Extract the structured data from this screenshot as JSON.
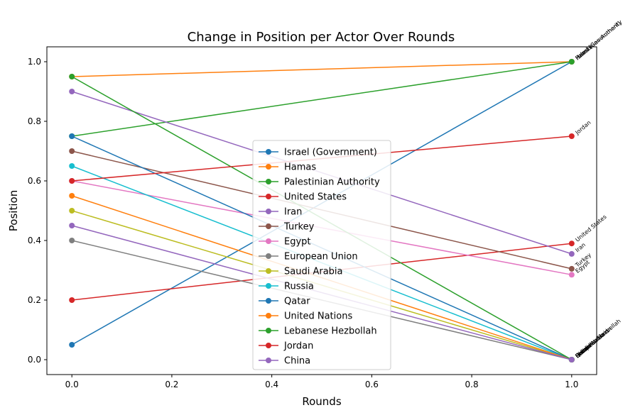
{
  "chart_data": {
    "type": "line",
    "title": "Change in Position per Actor Over Rounds",
    "xlabel": "Rounds",
    "ylabel": "Position",
    "xlim": [
      -0.05,
      1.05
    ],
    "ylim": [
      -0.05,
      1.05
    ],
    "x": [
      0.0,
      1.0
    ],
    "xticks": [
      0.0,
      0.2,
      0.4,
      0.6,
      0.8,
      1.0
    ],
    "yticks": [
      0.0,
      0.2,
      0.4,
      0.6,
      0.8,
      1.0
    ],
    "xtick_labels": [
      "0.0",
      "0.2",
      "0.4",
      "0.6",
      "0.8",
      "1.0"
    ],
    "ytick_labels": [
      "0.0",
      "0.2",
      "0.4",
      "0.6",
      "0.8",
      "1.0"
    ],
    "grid": false,
    "legend_position": "center-bottom",
    "series": [
      {
        "name": "Israel (Government)",
        "color": "#1f77b4",
        "values": [
          0.05,
          1.0
        ]
      },
      {
        "name": "Hamas",
        "color": "#ff7f0e",
        "values": [
          0.95,
          1.0
        ]
      },
      {
        "name": "Palestinian Authority",
        "color": "#2ca02c",
        "values": [
          0.75,
          1.0
        ]
      },
      {
        "name": "United States",
        "color": "#d62728",
        "values": [
          0.2,
          0.39
        ]
      },
      {
        "name": "Iran",
        "color": "#9467bd",
        "values": [
          0.9,
          0.355
        ]
      },
      {
        "name": "Turkey",
        "color": "#8c564b",
        "values": [
          0.7,
          0.305
        ]
      },
      {
        "name": "Egypt",
        "color": "#e377c2",
        "values": [
          0.6,
          0.285
        ]
      },
      {
        "name": "European Union",
        "color": "#7f7f7f",
        "values": [
          0.4,
          0.0
        ]
      },
      {
        "name": "Saudi Arabia",
        "color": "#bcbd22",
        "values": [
          0.5,
          0.0
        ]
      },
      {
        "name": "Russia",
        "color": "#17becf",
        "values": [
          0.65,
          0.0
        ]
      },
      {
        "name": "Qatar",
        "color": "#1f77b4",
        "values": [
          0.75,
          0.0
        ]
      },
      {
        "name": "United Nations",
        "color": "#ff7f0e",
        "values": [
          0.55,
          0.0
        ]
      },
      {
        "name": "Lebanese Hezbollah",
        "color": "#2ca02c",
        "values": [
          0.95,
          0.0
        ]
      },
      {
        "name": "Jordan",
        "color": "#d62728",
        "values": [
          0.6,
          0.75
        ]
      },
      {
        "name": "China",
        "color": "#9467bd",
        "values": [
          0.45,
          0.0
        ]
      }
    ]
  }
}
